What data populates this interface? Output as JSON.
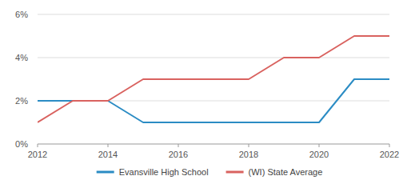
{
  "chart_data": {
    "type": "line",
    "x": [
      2012,
      2013,
      2014,
      2015,
      2016,
      2017,
      2018,
      2019,
      2020,
      2021,
      2022
    ],
    "series": [
      {
        "name": "Evansville High School",
        "color": "#2b8cc4",
        "values": [
          2,
          2,
          2,
          1,
          1,
          1,
          1,
          1,
          1,
          3,
          3
        ]
      },
      {
        "name": "(WI) State Average",
        "color": "#d9625f",
        "values": [
          1,
          2,
          2,
          3,
          3,
          3,
          3,
          4,
          4,
          5,
          5
        ]
      }
    ],
    "xlim": [
      2012,
      2022
    ],
    "xticks": [
      2012,
      2014,
      2016,
      2018,
      2020,
      2022
    ],
    "ylim": [
      0,
      6
    ],
    "yticks": [
      {
        "value": 0,
        "label": "0%"
      },
      {
        "value": 2,
        "label": "2%"
      },
      {
        "value": 4,
        "label": "4%"
      },
      {
        "value": 6,
        "label": "6%"
      }
    ],
    "grid": true,
    "legend": "bottom"
  }
}
